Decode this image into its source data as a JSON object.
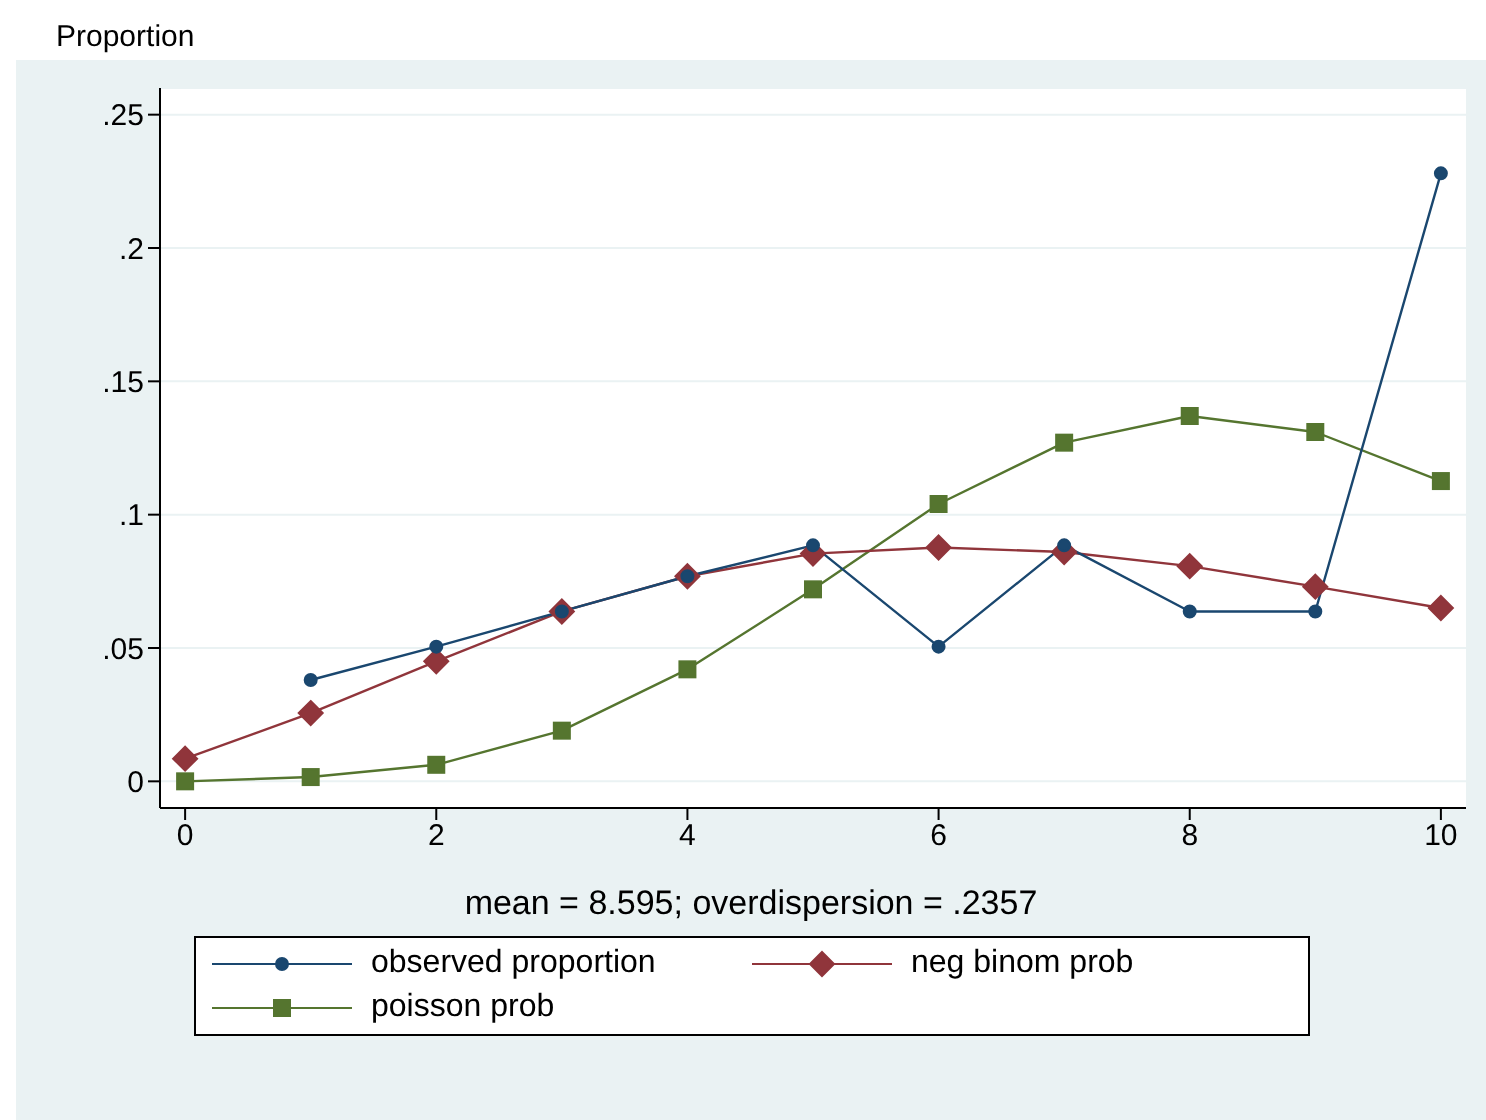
{
  "chart_data": {
    "type": "line",
    "ylabel": "Proportion",
    "xlabel": "mean = 8.595; overdispersion = .2357",
    "x": [
      0,
      1,
      2,
      3,
      4,
      5,
      6,
      7,
      8,
      9,
      10
    ],
    "series": [
      {
        "name": "observed proportion",
        "color": "#1a476f",
        "marker": "circle",
        "values": [
          null,
          0.038,
          0.0505,
          0.0637,
          0.0769,
          0.0885,
          0.0505,
          0.0885,
          0.0637,
          0.0637,
          0.228
        ]
      },
      {
        "name": "neg binom prob",
        "color": "#90353b",
        "marker": "diamond",
        "values": [
          0.0085,
          0.0256,
          0.045,
          0.0637,
          0.0769,
          0.0854,
          0.0877,
          0.086,
          0.0807,
          0.073,
          0.065
        ]
      },
      {
        "name": "poisson prob",
        "color": "#55752f",
        "marker": "square",
        "values": [
          0,
          0.0016,
          0.0062,
          0.019,
          0.042,
          0.072,
          0.104,
          0.127,
          0.137,
          0.131,
          0.1126
        ]
      }
    ],
    "xlim": [
      -0.2,
      10.2
    ],
    "xticks": [
      0,
      2,
      4,
      6,
      8,
      10
    ],
    "ylim": [
      -0.01,
      0.26
    ],
    "yticks": [
      {
        "value": 0,
        "label": "0"
      },
      {
        "value": 0.05,
        "label": ".05"
      },
      {
        "value": 0.1,
        "label": ".1"
      },
      {
        "value": 0.15,
        "label": ".15"
      },
      {
        "value": 0.2,
        "label": ".2"
      },
      {
        "value": 0.25,
        "label": ".25"
      }
    ],
    "grid": "y",
    "legend": "bottom",
    "line_style": "solid"
  }
}
